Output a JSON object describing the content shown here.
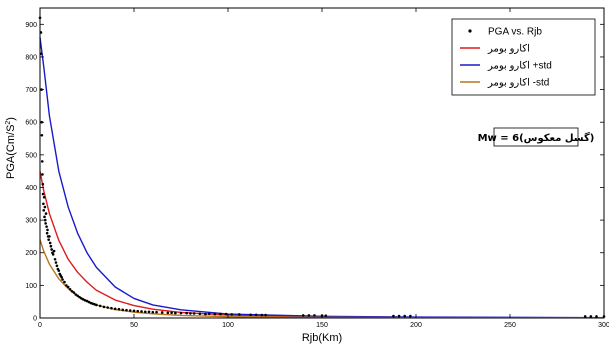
{
  "chart_data": {
    "type": "scatter",
    "title": "",
    "xlabel": "Rjb(Km)",
    "ylabel": "PGA(Cm/S²)",
    "xlim": [
      0,
      300
    ],
    "ylim": [
      0,
      950
    ],
    "x_ticks": [
      0,
      50,
      100,
      150,
      200,
      250,
      300
    ],
    "y_ticks": [
      0,
      100,
      200,
      300,
      400,
      500,
      600,
      700,
      800,
      900
    ],
    "grid": false,
    "legend_position": "top-right",
    "annotation": "Mw = 6(گسل معکوس)",
    "colors": {
      "data": "#000000",
      "median": "#dd1c1c",
      "plus_std": "#1a1acc",
      "minus_std": "#b8761e"
    },
    "series": [
      {
        "name": "PGA vs. Rjb",
        "kind": "scatter",
        "points": [
          [
            0,
            920
          ],
          [
            0.5,
            875
          ],
          [
            0.6,
            810
          ],
          [
            0.8,
            700
          ],
          [
            0.9,
            600
          ],
          [
            1,
            560
          ],
          [
            1.2,
            480
          ],
          [
            1.3,
            440
          ],
          [
            1.5,
            410
          ],
          [
            1.6,
            380
          ],
          [
            1.8,
            350
          ],
          [
            2,
            330
          ],
          [
            2.2,
            370
          ],
          [
            2.4,
            310
          ],
          [
            2.6,
            340
          ],
          [
            2.8,
            300
          ],
          [
            3,
            290
          ],
          [
            3.2,
            320
          ],
          [
            3.5,
            280
          ],
          [
            3.8,
            260
          ],
          [
            4,
            270
          ],
          [
            4.3,
            250
          ],
          [
            4.6,
            240
          ],
          [
            5,
            250
          ],
          [
            5.4,
            230
          ],
          [
            5.8,
            220
          ],
          [
            6.2,
            210
          ],
          [
            6.6,
            200
          ],
          [
            7,
            195
          ],
          [
            7.5,
            205
          ],
          [
            8,
            180
          ],
          [
            8.5,
            170
          ],
          [
            9,
            160
          ],
          [
            9.5,
            150
          ],
          [
            10,
            145
          ],
          [
            10.5,
            135
          ],
          [
            11,
            130
          ],
          [
            11.5,
            125
          ],
          [
            12,
            118
          ],
          [
            13,
            110
          ],
          [
            14,
            100
          ],
          [
            15,
            95
          ],
          [
            16,
            88
          ],
          [
            17,
            82
          ],
          [
            18,
            78
          ],
          [
            19,
            72
          ],
          [
            20,
            68
          ],
          [
            21,
            64
          ],
          [
            22,
            60
          ],
          [
            23,
            57
          ],
          [
            24,
            54
          ],
          [
            25,
            52
          ],
          [
            26,
            49
          ],
          [
            27,
            46
          ],
          [
            28,
            44
          ],
          [
            29,
            42
          ],
          [
            30,
            40
          ],
          [
            32,
            37
          ],
          [
            34,
            34
          ],
          [
            36,
            32
          ],
          [
            38,
            30
          ],
          [
            40,
            28
          ],
          [
            42,
            27
          ],
          [
            44,
            25
          ],
          [
            46,
            24
          ],
          [
            48,
            23
          ],
          [
            50,
            22
          ],
          [
            52,
            21
          ],
          [
            54,
            20
          ],
          [
            56,
            19
          ],
          [
            58,
            19
          ],
          [
            60,
            18
          ],
          [
            62,
            18
          ],
          [
            65,
            17
          ],
          [
            68,
            16
          ],
          [
            70,
            16
          ],
          [
            72,
            15
          ],
          [
            75,
            15
          ],
          [
            78,
            15
          ],
          [
            80,
            14
          ],
          [
            82,
            14
          ],
          [
            85,
            13
          ],
          [
            88,
            12
          ],
          [
            90,
            13
          ],
          [
            93,
            12
          ],
          [
            96,
            12
          ],
          [
            99,
            12
          ],
          [
            102,
            11
          ],
          [
            106,
            11
          ],
          [
            112,
            10
          ],
          [
            115,
            10
          ],
          [
            118,
            9
          ],
          [
            120,
            9
          ],
          [
            140,
            8
          ],
          [
            143,
            8
          ],
          [
            146,
            8
          ],
          [
            150,
            7
          ],
          [
            152,
            7
          ],
          [
            188,
            6
          ],
          [
            191,
            6
          ],
          [
            194,
            6
          ],
          [
            197,
            6
          ],
          [
            290,
            5
          ],
          [
            293,
            5
          ],
          [
            296,
            5
          ],
          [
            300,
            5
          ]
        ]
      },
      {
        "name": "اکارو بومر",
        "kind": "line",
        "x": [
          0,
          2,
          5,
          10,
          15,
          20,
          25,
          30,
          40,
          50,
          60,
          75,
          100,
          150,
          200,
          250,
          300
        ],
        "y": [
          450,
          390,
          320,
          238,
          180,
          140,
          110,
          85,
          55,
          38,
          27,
          17,
          9,
          4,
          2,
          1,
          1
        ]
      },
      {
        "name": "اکارو بومر +std",
        "kind": "line",
        "x": [
          0,
          2,
          5,
          10,
          15,
          20,
          25,
          30,
          40,
          50,
          60,
          75,
          100,
          150,
          200,
          250,
          300
        ],
        "y": [
          860,
          770,
          620,
          450,
          340,
          260,
          200,
          155,
          95,
          60,
          40,
          25,
          12,
          5,
          3,
          2,
          1
        ]
      },
      {
        "name": "اکارو بومر -std",
        "kind": "line",
        "x": [
          0,
          2,
          5,
          10,
          15,
          20,
          25,
          30,
          40,
          50,
          60,
          75,
          100,
          150,
          200,
          250,
          300
        ],
        "y": [
          240,
          205,
          165,
          120,
          90,
          68,
          52,
          40,
          26,
          18,
          13,
          8,
          4,
          2,
          1,
          1,
          1
        ]
      }
    ]
  }
}
